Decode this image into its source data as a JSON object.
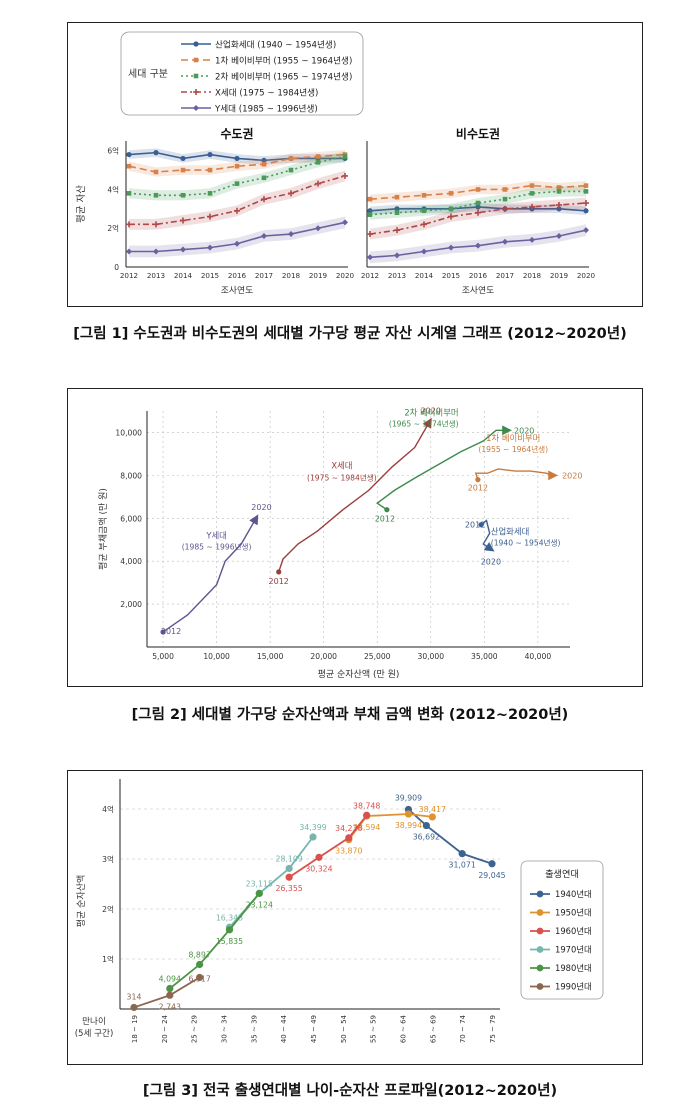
{
  "captions": {
    "fig1": "[그림 1] 수도권과 비수도권의 세대별 가구당 평균 자산 시계열 그래프 (2012~2020년)",
    "fig2": "[그림 2] 세대별 가구당 순자산액과 부채 금액 변화 (2012~2020년)",
    "fig3": "[그림 3] 전국 출생연대별 나이-순자산 프로파일(2012~2020년)"
  },
  "chart_data": [
    {
      "type": "line",
      "legend_title": "세대 구분",
      "legend_position": "top-left",
      "x": [
        2012,
        2013,
        2014,
        2015,
        2016,
        2017,
        2018,
        2019,
        2020
      ],
      "xlabel": "조사연도",
      "ylabel": "평균 자산",
      "yticks": [
        {
          "value": 0,
          "label": "0"
        },
        {
          "value": 2,
          "label": "2억"
        },
        {
          "value": 4,
          "label": "4억"
        },
        {
          "value": 6,
          "label": "6억"
        }
      ],
      "ylim": [
        0,
        6.5
      ],
      "series": [
        {
          "name": "산업화세대 (1940 ~ 1954년생)",
          "color": "#3a5f94",
          "dash": "",
          "marker": "circle"
        },
        {
          "name": "1차 베이비부머 (1955 ~ 1964년생)",
          "color": "#d9814a",
          "dash": "7,4",
          "marker": "square"
        },
        {
          "name": "2차 베이비부머 (1965 ~ 1974년생)",
          "color": "#4a9a5a",
          "dash": "2,3",
          "marker": "square"
        },
        {
          "name": "X세대 (1975 ~ 1984년생)",
          "color": "#b04848",
          "dash": "6,3,2,3",
          "marker": "plus"
        },
        {
          "name": "Y세대 (1985 ~ 1996년생)",
          "color": "#6a62a0",
          "dash": "",
          "marker": "diamond"
        }
      ],
      "panels": [
        {
          "title": "수도권",
          "values": [
            [
              5.8,
              5.9,
              5.6,
              5.8,
              5.6,
              5.5,
              5.6,
              5.6,
              5.6
            ],
            [
              5.2,
              4.9,
              5.0,
              5.0,
              5.2,
              5.3,
              5.6,
              5.7,
              5.8
            ],
            [
              3.8,
              3.7,
              3.7,
              3.8,
              4.3,
              4.6,
              5.0,
              5.4,
              5.7
            ],
            [
              2.2,
              2.2,
              2.4,
              2.6,
              2.9,
              3.5,
              3.8,
              4.3,
              4.7
            ],
            [
              0.8,
              0.8,
              0.9,
              1.0,
              1.2,
              1.6,
              1.7,
              2.0,
              2.3
            ]
          ]
        },
        {
          "title": "비수도권",
          "values": [
            [
              2.9,
              3.0,
              3.0,
              3.0,
              3.1,
              3.0,
              3.0,
              3.0,
              2.9
            ],
            [
              3.5,
              3.6,
              3.7,
              3.8,
              4.0,
              4.0,
              4.2,
              4.1,
              4.2
            ],
            [
              2.7,
              2.8,
              2.9,
              3.0,
              3.3,
              3.5,
              3.8,
              3.9,
              3.9
            ],
            [
              1.7,
              1.9,
              2.2,
              2.6,
              2.8,
              3.0,
              3.1,
              3.2,
              3.3
            ],
            [
              0.5,
              0.6,
              0.8,
              1.0,
              1.1,
              1.3,
              1.4,
              1.6,
              1.9
            ]
          ]
        }
      ]
    },
    {
      "type": "line",
      "xlabel": "평균 순자산액 (만 원)",
      "ylabel": "평균 부채금액 (만 원)",
      "xlim": [
        3500,
        43000
      ],
      "ylim": [
        0,
        11000
      ],
      "xticks": [
        5000,
        10000,
        15000,
        20000,
        25000,
        30000,
        35000,
        40000
      ],
      "xtick_labels": [
        "5,000",
        "10,000",
        "15,000",
        "20,000",
        "25,000",
        "30,000",
        "35,000",
        "40,000"
      ],
      "yticks": [
        2000,
        4000,
        6000,
        8000,
        10000
      ],
      "ytick_labels": [
        "2,000",
        "4,000",
        "6,000",
        "8,000",
        "10,000"
      ],
      "grid": true,
      "series": [
        {
          "name": "Y세대",
          "sub": "(1985 ~ 1996년생)",
          "color": "#5c558f",
          "points": [
            [
              5000,
              700
            ],
            [
              7300,
              1500
            ],
            [
              10000,
              2900
            ],
            [
              10800,
              4000
            ],
            [
              12300,
              4800
            ],
            [
              13800,
              6100
            ]
          ],
          "start_label": "2012",
          "end_label": "2020"
        },
        {
          "name": "X세대",
          "sub": "(1975 ~ 1984년생)",
          "color": "#9b3d3d",
          "points": [
            [
              15800,
              3500
            ],
            [
              16200,
              4100
            ],
            [
              17600,
              4800
            ],
            [
              19400,
              5400
            ],
            [
              21800,
              6400
            ],
            [
              24200,
              7300
            ],
            [
              26400,
              8400
            ],
            [
              28500,
              9300
            ],
            [
              30000,
              10600
            ]
          ],
          "start_label": "2012",
          "end_label": "2020"
        },
        {
          "name": "2차 베이비부머",
          "sub": "(1965 ~ 1974년생)",
          "color": "#3c8a4c",
          "points": [
            [
              25900,
              6400
            ],
            [
              25000,
              6700
            ],
            [
              26600,
              7300
            ],
            [
              28600,
              7900
            ],
            [
              30700,
              8500
            ],
            [
              32800,
              9100
            ],
            [
              34900,
              9600
            ],
            [
              36100,
              10100
            ],
            [
              37400,
              10100
            ]
          ],
          "start_label": "2012",
          "end_label": "2020"
        },
        {
          "name": "1차 베이비부머",
          "sub": "(1955 ~ 1964년생)",
          "color": "#c97a3e",
          "points": [
            [
              34400,
              7800
            ],
            [
              34200,
              8100
            ],
            [
              35300,
              8100
            ],
            [
              36300,
              8300
            ],
            [
              37900,
              8200
            ],
            [
              39300,
              8200
            ],
            [
              40800,
              8100
            ],
            [
              41300,
              8000
            ],
            [
              41700,
              8000
            ]
          ],
          "start_label": "2012",
          "end_label": "2020"
        },
        {
          "name": "산업화세대",
          "sub": "(1940 ~ 1954년생)",
          "color": "#3c5f92",
          "points": [
            [
              34700,
              5700
            ],
            [
              35200,
              5900
            ],
            [
              35500,
              5300
            ],
            [
              34900,
              4800
            ],
            [
              35800,
              4500
            ]
          ],
          "start_label": "2012",
          "end_label": "2020"
        }
      ]
    },
    {
      "type": "line",
      "xlabel": "만나이\n(5세 구간)",
      "xlabel_lines": [
        "만나이",
        "(5세 구간)"
      ],
      "ylabel": "평균 순자산액",
      "categories": [
        "18 ~ 19",
        "20 ~ 24",
        "25 ~ 29",
        "30 ~ 34",
        "35 ~ 39",
        "40 ~ 44",
        "45 ~ 49",
        "50 ~ 54",
        "55 ~ 59",
        "60 ~ 64",
        "65 ~ 69",
        "70 ~ 74",
        "75 ~ 79"
      ],
      "yticks": [
        {
          "value": 10000,
          "label": "1억"
        },
        {
          "value": 20000,
          "label": "2억"
        },
        {
          "value": 30000,
          "label": "3억"
        },
        {
          "value": 40000,
          "label": "4억"
        }
      ],
      "ylim": [
        0,
        46000
      ],
      "grid": true,
      "legend_title": "출생연대",
      "legend_position": "right",
      "series": [
        {
          "name": "1940년대",
          "color": "#3d6491",
          "points": [
            [
              9.2,
              39909
            ],
            [
              9.8,
              36692
            ],
            [
              11,
              31071
            ],
            [
              12,
              29045
            ]
          ],
          "labels": [
            {
              "i": 0,
              "text": "39,909",
              "dy": -9
            },
            {
              "i": 1,
              "text": "36,692",
              "dy": 14
            },
            {
              "i": 2,
              "text": "31,071",
              "dy": 14
            },
            {
              "i": 3,
              "text": "29,045",
              "dy": 14
            }
          ]
        },
        {
          "name": "1950년대",
          "color": "#e0922e",
          "points": [
            [
              7.2,
              33870
            ],
            [
              7.8,
              38594
            ],
            [
              9.2,
              38994
            ],
            [
              10,
              38417
            ]
          ],
          "labels": [
            {
              "i": 0,
              "text": "33,870",
              "dy": 14
            },
            {
              "i": 1,
              "text": "38,594",
              "dy": 14
            },
            {
              "i": 2,
              "text": "38,994",
              "dy": 14
            },
            {
              "i": 3,
              "text": "38,417",
              "dy": -5
            }
          ]
        },
        {
          "name": "1960년대",
          "color": "#d9504e",
          "points": [
            [
              5.2,
              26355
            ],
            [
              6.2,
              30324
            ],
            [
              7.2,
              34238
            ],
            [
              7.8,
              38748
            ]
          ],
          "labels": [
            {
              "i": 0,
              "text": "26,355",
              "dy": 14
            },
            {
              "i": 1,
              "text": "30,324",
              "dy": 14
            },
            {
              "i": 2,
              "text": "34,238",
              "dy": -7
            },
            {
              "i": 3,
              "text": "38,748",
              "dy": -7
            }
          ]
        },
        {
          "name": "1970년대",
          "color": "#76b6ad",
          "points": [
            [
              3.2,
              16343
            ],
            [
              4.2,
              23115
            ],
            [
              5.2,
              28109
            ],
            [
              6,
              34399
            ]
          ],
          "labels": [
            {
              "i": 0,
              "text": "16,343",
              "dy": -7
            },
            {
              "i": 1,
              "text": "23,115",
              "dy": -7
            },
            {
              "i": 2,
              "text": "28,109",
              "dy": -7
            },
            {
              "i": 3,
              "text": "34,399",
              "dy": -7
            }
          ]
        },
        {
          "name": "1980년대",
          "color": "#4b9443",
          "points": [
            [
              1.2,
              4094
            ],
            [
              2.2,
              8897
            ],
            [
              3.2,
              15835
            ],
            [
              4.2,
              23124
            ]
          ],
          "labels": [
            {
              "i": 0,
              "text": "4,094",
              "dy": -7
            },
            {
              "i": 1,
              "text": "8,897",
              "dy": -7
            },
            {
              "i": 2,
              "text": "15,835",
              "dy": 14
            },
            {
              "i": 3,
              "text": "23,124",
              "dy": 14
            }
          ]
        },
        {
          "name": "1990년대",
          "color": "#8b6650",
          "points": [
            [
              0,
              314
            ],
            [
              1.2,
              2743
            ],
            [
              2.2,
              6317
            ]
          ],
          "labels": [
            {
              "i": 0,
              "text": "314",
              "dy": -8
            },
            {
              "i": 1,
              "text": "2,743",
              "dy": 14
            },
            {
              "i": 2,
              "text": "6,317",
              "dy": 4
            }
          ]
        }
      ]
    }
  ]
}
